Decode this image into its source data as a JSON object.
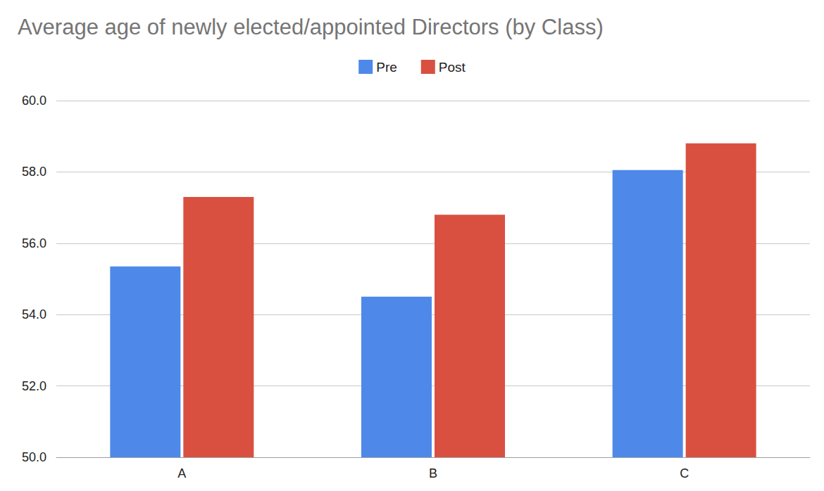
{
  "chart_data": {
    "type": "bar",
    "title": "Average age of newly elected/appointed Directors (by Class)",
    "categories": [
      "A",
      "B",
      "C"
    ],
    "series": [
      {
        "name": "Pre",
        "color": "#4e89ea",
        "values": [
          55.35,
          54.5,
          58.05
        ]
      },
      {
        "name": "Post",
        "color": "#d95040",
        "values": [
          57.3,
          56.8,
          58.8
        ]
      }
    ],
    "ylim": [
      50,
      60
    ],
    "yticks": [
      {
        "value": 50,
        "label": "50.0"
      },
      {
        "value": 52,
        "label": "52.0"
      },
      {
        "value": 54,
        "label": "54.0"
      },
      {
        "value": 56,
        "label": "56.0"
      },
      {
        "value": 58,
        "label": "58.0"
      },
      {
        "value": 60,
        "label": "60.0"
      }
    ],
    "grid": true,
    "legend": "top"
  }
}
